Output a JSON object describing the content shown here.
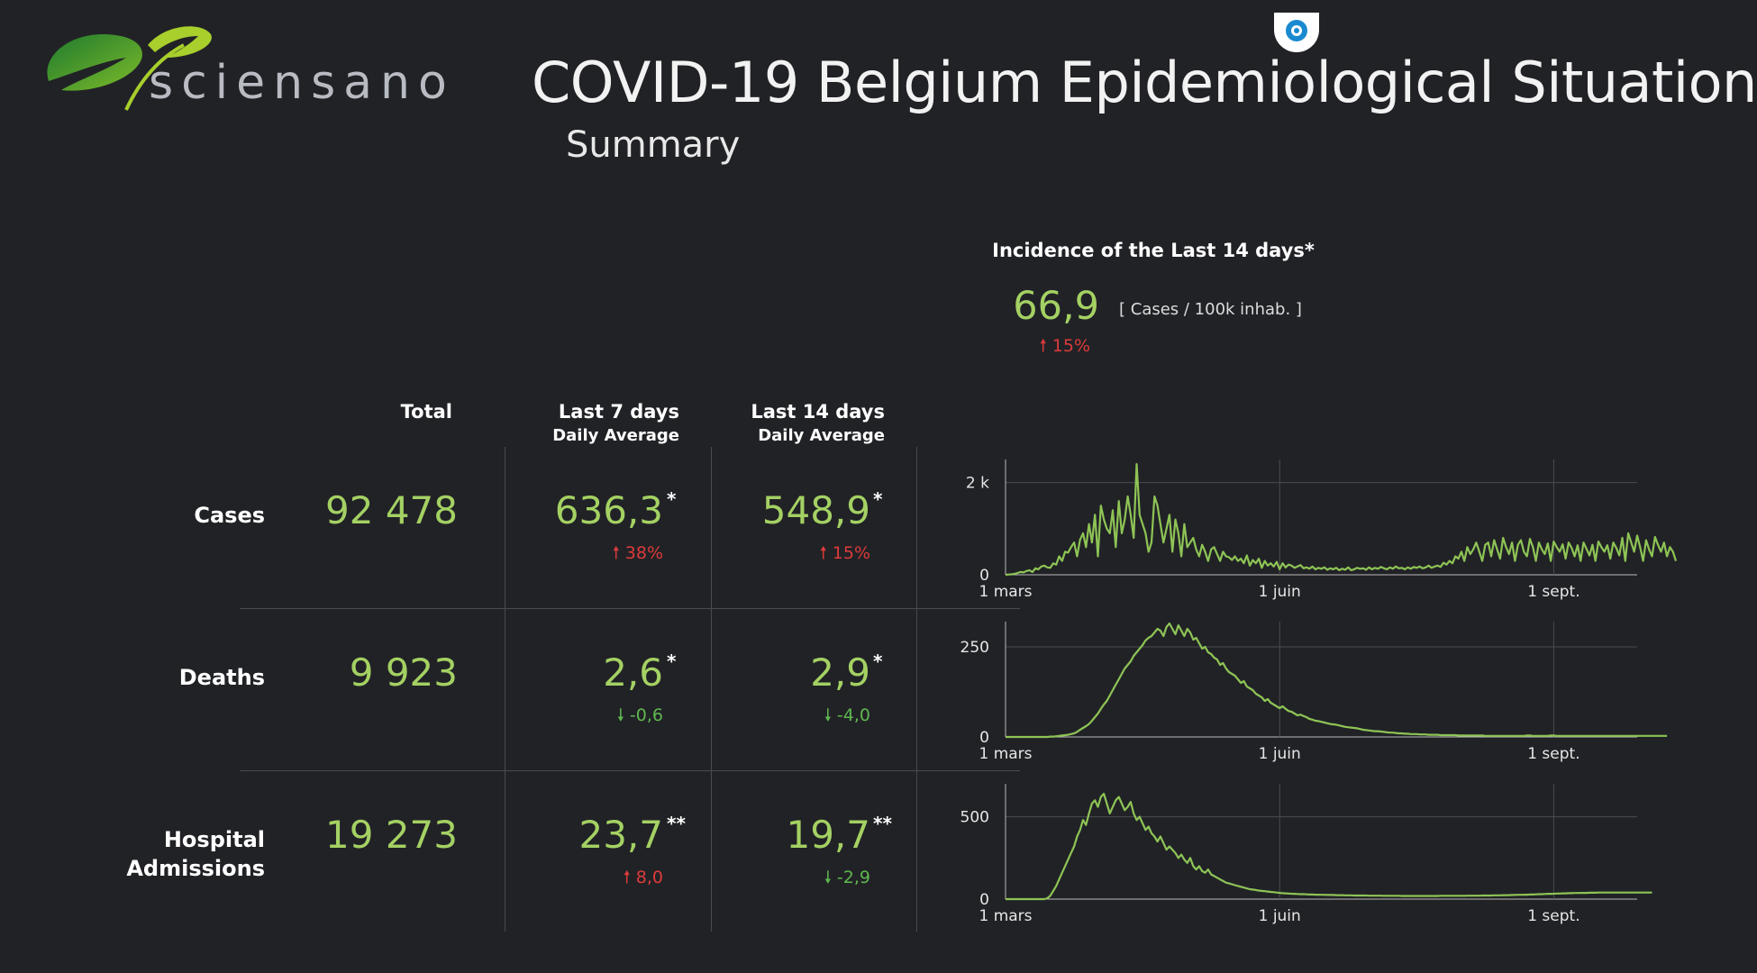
{
  "header": {
    "logo_text": "sciensano",
    "title": "COVID-19 Belgium Epidemiological Situation",
    "subtitle": "Summary"
  },
  "incidence": {
    "title": "Incidence of the Last 14 days*",
    "value": "66,9",
    "unit": "[ Cases / 100k inhab. ]",
    "change": "15%",
    "change_direction": "up"
  },
  "columns": {
    "total": "Total",
    "last7": "Last 7 days",
    "last7_sub": "Daily Average",
    "last14": "Last 14 days",
    "last14_sub": "Daily Average"
  },
  "rows": {
    "cases": {
      "label": "Cases",
      "total": "92 478",
      "avg7": "636,3",
      "avg7_mark": "*",
      "avg7_change": "38%",
      "avg7_dir": "up",
      "avg14": "548,9",
      "avg14_mark": "*",
      "avg14_change": "15%",
      "avg14_dir": "up"
    },
    "deaths": {
      "label": "Deaths",
      "total": "9 923",
      "avg7": "2,6",
      "avg7_mark": "*",
      "avg7_change": "-0,6",
      "avg7_dir": "down",
      "avg14": "2,9",
      "avg14_mark": "*",
      "avg14_change": "-4,0",
      "avg14_dir": "down"
    },
    "hospital": {
      "label_line1": "Hospital",
      "label_line2": "Admissions",
      "total": "19 273",
      "avg7": "23,7",
      "avg7_mark": "**",
      "avg7_change": "8,0",
      "avg7_dir": "up",
      "avg14": "19,7",
      "avg14_mark": "**",
      "avg14_change": "-2,9",
      "avg14_dir": "down"
    }
  },
  "colors": {
    "background": "#212226",
    "value_green": "#a4d163",
    "line_green": "#8ec455",
    "increase_red": "#dc3b3b",
    "decrease_green": "#5fb84f"
  },
  "chart_data": [
    {
      "type": "line",
      "name": "cases",
      "x_ticks": [
        "1 mars",
        "1 juin",
        "1 sept."
      ],
      "y_ticks": [
        "0",
        "2 k"
      ],
      "ylim": [
        0,
        2500
      ],
      "xlim": [
        0,
        212
      ],
      "grid": true,
      "series": [
        {
          "values": [
            0,
            5,
            10,
            20,
            40,
            60,
            50,
            80,
            100,
            60,
            140,
            120,
            180,
            200,
            160,
            150,
            250,
            220,
            400,
            300,
            500,
            480,
            600,
            700,
            400,
            760,
            900,
            600,
            1100,
            700,
            1300,
            400,
            1500,
            1200,
            1000,
            900,
            1400,
            600,
            1600,
            900,
            1200,
            1700,
            1300,
            800,
            2400,
            1300,
            1100,
            900,
            500,
            700,
            1700,
            1500,
            1100,
            700,
            1000,
            1300,
            500,
            1200,
            900,
            400,
            1100,
            600,
            700,
            800,
            550,
            400,
            650,
            500,
            300,
            550,
            600,
            450,
            300,
            500,
            400,
            380,
            320,
            400,
            300,
            350,
            250,
            420,
            200,
            320,
            250,
            350,
            150,
            300,
            200,
            250,
            180,
            280,
            120,
            250,
            160,
            220,
            200,
            150,
            180,
            210,
            140,
            160,
            130,
            180,
            120,
            150,
            130,
            160,
            110,
            140,
            120,
            150,
            100,
            130,
            110,
            160,
            100,
            120,
            150,
            130,
            140,
            110,
            160,
            120,
            150,
            130,
            170,
            140,
            120,
            160,
            130,
            180,
            140,
            150,
            120,
            160,
            130,
            170,
            150,
            180,
            140,
            160,
            200,
            150,
            180,
            200,
            170,
            260,
            220,
            300,
            250,
            400,
            350,
            500,
            300,
            600,
            450,
            550,
            700,
            500,
            300,
            650,
            700,
            400,
            750,
            550,
            350,
            800,
            600,
            450,
            700,
            300,
            650,
            750,
            500,
            400,
            780,
            600,
            300,
            700,
            550,
            450,
            680,
            300,
            720,
            600,
            500,
            660,
            350,
            700,
            580,
            400,
            640,
            300,
            700,
            560,
            420,
            650,
            300,
            720,
            600,
            500,
            640,
            350,
            700,
            580,
            420,
            800,
            300,
            900,
            700,
            500,
            850,
            600,
            300,
            750,
            550,
            400,
            820,
            650,
            500,
            700,
            400,
            600,
            500,
            300
          ]
        }
      ]
    },
    {
      "type": "line",
      "name": "deaths",
      "x_ticks": [
        "1 mars",
        "1 juin",
        "1 sept."
      ],
      "y_ticks": [
        "0",
        "250"
      ],
      "ylim": [
        0,
        320
      ],
      "xlim": [
        0,
        212
      ],
      "grid": true,
      "series": [
        {
          "values": [
            0,
            0,
            0,
            0,
            0,
            0,
            0,
            0,
            0,
            0,
            0,
            0,
            0,
            0,
            0,
            1,
            1,
            2,
            3,
            4,
            5,
            6,
            8,
            10,
            14,
            20,
            25,
            30,
            36,
            45,
            55,
            65,
            78,
            90,
            100,
            115,
            130,
            145,
            160,
            175,
            190,
            200,
            210,
            225,
            235,
            245,
            255,
            268,
            275,
            280,
            290,
            300,
            295,
            280,
            305,
            315,
            300,
            285,
            310,
            295,
            280,
            300,
            290,
            270,
            275,
            260,
            245,
            250,
            235,
            230,
            220,
            215,
            200,
            205,
            190,
            180,
            175,
            170,
            160,
            150,
            155,
            140,
            135,
            130,
            120,
            115,
            110,
            100,
            105,
            95,
            90,
            85,
            80,
            85,
            78,
            72,
            70,
            65,
            60,
            62,
            58,
            55,
            50,
            48,
            45,
            44,
            42,
            40,
            38,
            36,
            35,
            34,
            32,
            30,
            28,
            27,
            26,
            25,
            24,
            22,
            20,
            19,
            18,
            17,
            16,
            16,
            15,
            14,
            13,
            12,
            12,
            11,
            10,
            10,
            9,
            9,
            8,
            8,
            8,
            7,
            7,
            7,
            6,
            6,
            6,
            6,
            5,
            5,
            5,
            5,
            5,
            5,
            4,
            4,
            4,
            4,
            4,
            4,
            4,
            4,
            4,
            3,
            3,
            3,
            3,
            3,
            3,
            3,
            3,
            3,
            3,
            3,
            3,
            3,
            3,
            4,
            4,
            3,
            3,
            3,
            3,
            3,
            3,
            4,
            4,
            3,
            3,
            3,
            3,
            3,
            3,
            3,
            3,
            3,
            3,
            3,
            3,
            3,
            3,
            3,
            3,
            3,
            3,
            3,
            3,
            3,
            3,
            3,
            3,
            3,
            3,
            3,
            3,
            3,
            3,
            3,
            3,
            3,
            3,
            3,
            3,
            3,
            3
          ]
        }
      ]
    },
    {
      "type": "line",
      "name": "hospital_admissions",
      "x_ticks": [
        "1 mars",
        "1 juin",
        "1 sept."
      ],
      "y_ticks": [
        "0",
        "500"
      ],
      "ylim": [
        0,
        700
      ],
      "xlim": [
        0,
        212
      ],
      "grid": true,
      "series": [
        {
          "values": [
            0,
            0,
            0,
            0,
            0,
            0,
            0,
            0,
            0,
            0,
            0,
            0,
            0,
            0,
            5,
            20,
            50,
            80,
            120,
            160,
            200,
            240,
            280,
            320,
            380,
            420,
            480,
            450,
            520,
            580,
            600,
            560,
            620,
            640,
            580,
            520,
            560,
            600,
            620,
            580,
            540,
            560,
            590,
            520,
            480,
            500,
            460,
            420,
            440,
            400,
            380,
            350,
            380,
            340,
            300,
            320,
            300,
            280,
            250,
            270,
            240,
            220,
            250,
            200,
            180,
            200,
            170,
            160,
            180,
            150,
            140,
            130,
            120,
            110,
            100,
            95,
            90,
            85,
            80,
            75,
            70,
            65,
            60,
            58,
            55,
            52,
            50,
            48,
            46,
            44,
            42,
            40,
            38,
            36,
            35,
            34,
            33,
            32,
            31,
            30,
            30,
            29,
            28,
            28,
            27,
            27,
            26,
            26,
            25,
            25,
            25,
            24,
            24,
            24,
            23,
            23,
            23,
            22,
            22,
            22,
            22,
            22,
            21,
            21,
            21,
            21,
            21,
            20,
            20,
            20,
            20,
            20,
            20,
            19,
            19,
            19,
            19,
            19,
            19,
            19,
            19,
            19,
            19,
            19,
            19,
            19,
            20,
            20,
            20,
            20,
            20,
            20,
            20,
            20,
            20,
            21,
            21,
            21,
            21,
            21,
            22,
            22,
            22,
            22,
            23,
            23,
            23,
            24,
            24,
            24,
            25,
            25,
            26,
            26,
            27,
            27,
            28,
            28,
            29,
            30,
            30,
            31,
            32,
            32,
            33,
            34,
            34,
            35,
            35,
            36,
            36,
            37,
            37,
            38,
            38,
            38,
            39,
            39,
            39,
            40,
            40,
            40,
            40,
            40,
            40,
            40,
            40,
            40,
            40,
            40,
            40,
            40,
            40,
            40,
            40,
            40,
            40,
            40
          ]
        }
      ]
    }
  ]
}
